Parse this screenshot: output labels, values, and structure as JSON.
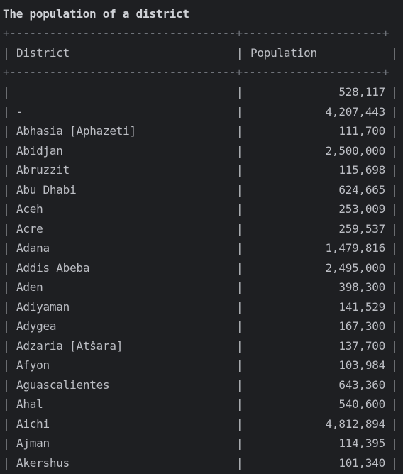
{
  "title": "The population of a district",
  "border_line": "+----------------------------------+---------------------+",
  "columns": {
    "district": "District",
    "population": "Population"
  },
  "rows": [
    {
      "district": "",
      "population": "528,117"
    },
    {
      "district": "-",
      "population": "4,207,443"
    },
    {
      "district": "Abhasia [Aphazeti]",
      "population": "111,700"
    },
    {
      "district": "Abidjan",
      "population": "2,500,000"
    },
    {
      "district": "Abruzzit",
      "population": "115,698"
    },
    {
      "district": "Abu Dhabi",
      "population": "624,665"
    },
    {
      "district": "Aceh",
      "population": "253,009"
    },
    {
      "district": "Acre",
      "population": "259,537"
    },
    {
      "district": "Adana",
      "population": "1,479,816"
    },
    {
      "district": "Addis Abeba",
      "population": "2,495,000"
    },
    {
      "district": "Aden",
      "population": "398,300"
    },
    {
      "district": "Adiyaman",
      "population": "141,529"
    },
    {
      "district": "Adygea",
      "population": "167,300"
    },
    {
      "district": "Adzaria [Atšara]",
      "population": "137,700"
    },
    {
      "district": "Afyon",
      "population": "103,984"
    },
    {
      "district": "Aguascalientes",
      "population": "643,360"
    },
    {
      "district": "Ahal",
      "population": "540,600"
    },
    {
      "district": "Aichi",
      "population": "4,812,894"
    },
    {
      "district": "Ajman",
      "population": "114,395"
    },
    {
      "district": "Akershus",
      "population": "101,340"
    }
  ]
}
